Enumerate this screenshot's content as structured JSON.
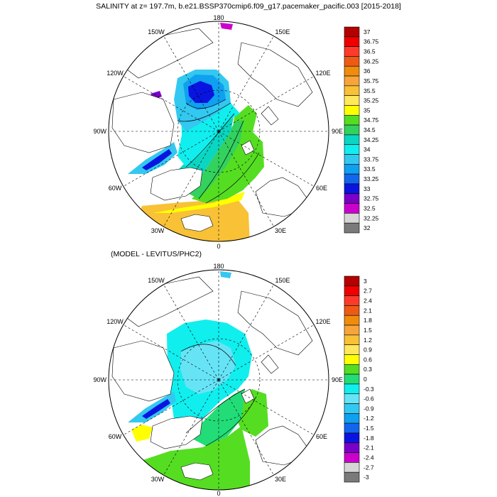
{
  "title": "SALINITY at z= 197.7m, b.e21.BSSP370cmip6.f09_g17.pacemaker_pacific.003 [2015-2018]",
  "subtitle": "(MODEL - LEVITUS/PHC2)",
  "longitude_labels": {
    "top": "180",
    "bottom": "0",
    "left": "90W",
    "right": "90E",
    "ul_outer": "150W",
    "ul_inner": "120W",
    "ur_outer": "150E",
    "ur_inner": "120E",
    "ll_inner": "60W",
    "ll_outer": "30W",
    "lr_inner": "60E",
    "lr_outer": "30E"
  },
  "colorbars": {
    "salinity": {
      "labels": [
        "37",
        "36.75",
        "36.5",
        "36.25",
        "36",
        "35.75",
        "35.5",
        "35.25",
        "35",
        "34.75",
        "34.5",
        "34.25",
        "34",
        "33.75",
        "33.5",
        "33.25",
        "33",
        "32.75",
        "32.5",
        "32.25",
        "32"
      ],
      "colors": [
        "#b30000",
        "#ee0000",
        "#ff3a2a",
        "#ee5a14",
        "#f08c0c",
        "#f7a53a",
        "#f8c136",
        "#ffe85c",
        "#ffff00",
        "#55dd22",
        "#33d15e",
        "#0ad6c2",
        "#11eeee",
        "#33c8f0",
        "#0fa0f0",
        "#1266ee",
        "#0a14e0",
        "#7a00c8",
        "#cc00cc",
        "#d6d6d6",
        "#7a7a7a"
      ]
    },
    "difference": {
      "labels": [
        "3",
        "2.7",
        "2.4",
        "2.1",
        "1.8",
        "1.5",
        "1.2",
        "0.9",
        "0.6",
        "0.3",
        "0",
        "-0.3",
        "-0.6",
        "-0.9",
        "-1.2",
        "-1.5",
        "-1.8",
        "-2.1",
        "-2.4",
        "-2.7",
        "-3"
      ],
      "colors": [
        "#b30000",
        "#ee0000",
        "#ff3a2a",
        "#ee5a14",
        "#f08c0c",
        "#f7a53a",
        "#f8c136",
        "#ffe85c",
        "#ffff00",
        "#55dd22",
        "#22dd77",
        "#11eeee",
        "#66e4f6",
        "#33c8f0",
        "#0fa0f0",
        "#1266ee",
        "#0a14e0",
        "#7a00c8",
        "#cc00cc",
        "#d6d6d6",
        "#7a7a7a"
      ]
    }
  },
  "colors": {
    "panel_bg": "#ffffff",
    "line": "#000000"
  }
}
